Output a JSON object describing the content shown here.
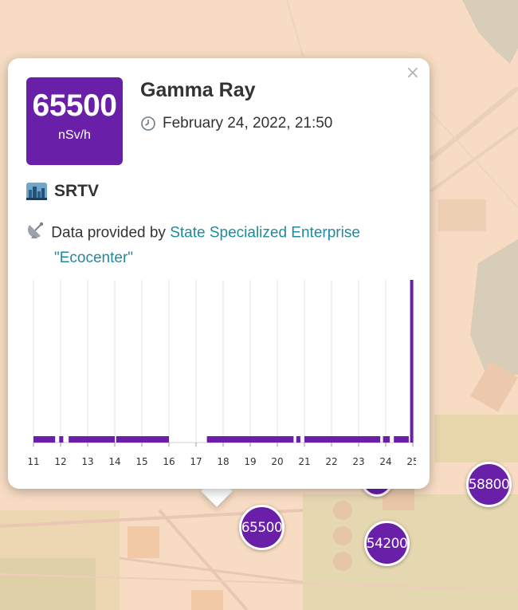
{
  "colors": {
    "accent": "#6a1fa8",
    "link": "#1f8a9e",
    "map_bg": "#f7dcc3"
  },
  "popup": {
    "close_label": "×",
    "value": "65500",
    "unit": "nSv/h",
    "title": "Gamma Ray",
    "time_icon": "clock-icon",
    "timestamp": "February 24, 2022, 21:50",
    "station_icon": "city-icon",
    "station": "SRTV",
    "provider_icon": "satellite-antenna-icon",
    "provider_prefix": "Data provided by ",
    "provider_name_line1": "State Specialized Enterprise",
    "provider_name_line2": "\"Ecocenter\""
  },
  "markers": [
    {
      "label": "65500"
    },
    {
      "label": "54200"
    },
    {
      "label": "58800"
    }
  ],
  "chart_data": {
    "type": "bar",
    "xlabel": "",
    "ylabel": "",
    "x_ticks": [
      "11",
      "12",
      "13",
      "14",
      "15",
      "16",
      "17",
      "18",
      "19",
      "20",
      "21",
      "22",
      "23",
      "24",
      "25"
    ],
    "ylim": [
      0,
      65500
    ],
    "grid": "vertical",
    "baseline_value": 110,
    "segments": [
      {
        "from": 11.0,
        "to": 11.8
      },
      {
        "from": 11.95,
        "to": 12.1
      },
      {
        "from": 12.3,
        "to": 14.0
      },
      {
        "from": 14.05,
        "to": 16.0
      },
      {
        "from": 17.4,
        "to": 20.6
      },
      {
        "from": 20.7,
        "to": 20.85
      },
      {
        "from": 21.0,
        "to": 23.8
      },
      {
        "from": 23.9,
        "to": 24.15
      },
      {
        "from": 24.3,
        "to": 24.85
      }
    ],
    "spike": {
      "x": 24.9,
      "value": 65500
    }
  }
}
